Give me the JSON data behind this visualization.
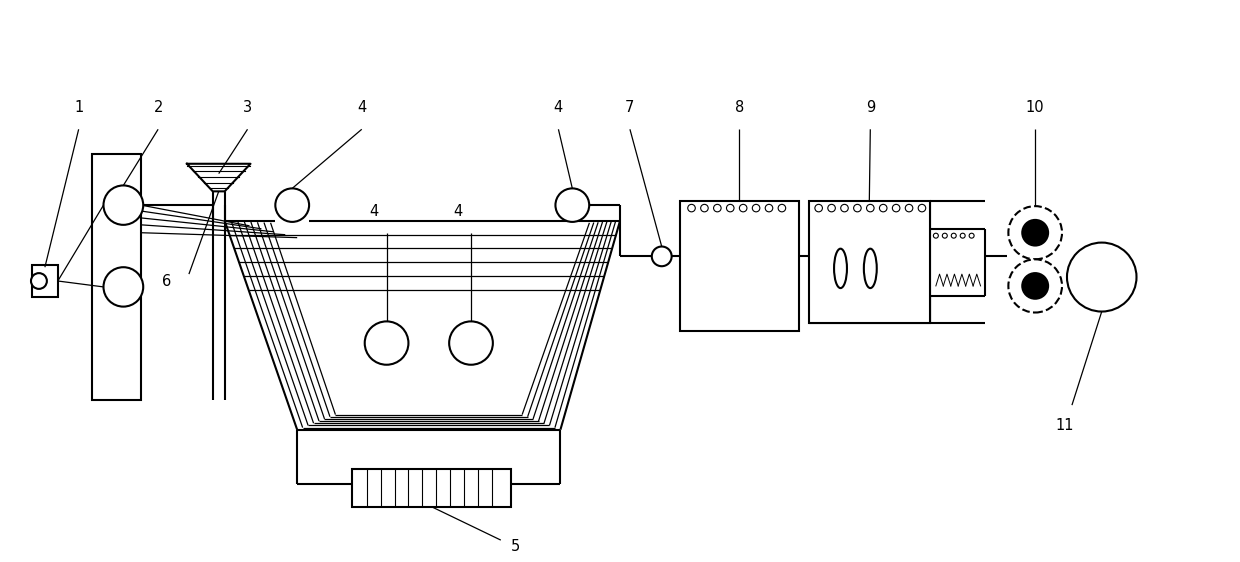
{
  "bg_color": "#ffffff",
  "lc": "#000000",
  "lw": 1.5,
  "label_fs": 10.5,
  "figw": 12.4,
  "figh": 5.62
}
